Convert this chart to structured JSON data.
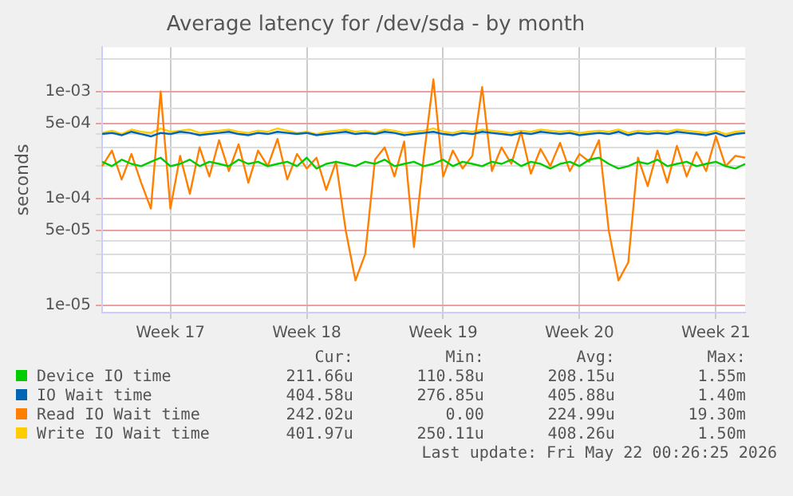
{
  "chart_data": {
    "type": "line",
    "title": "Average latency for /dev/sda - by month",
    "ylabel": "seconds",
    "log": "y",
    "grid": true,
    "legend": "bottom",
    "marker": "none",
    "line_style": "solid",
    "ylim": [
      8.5e-06,
      0.0026
    ],
    "yticks": [
      {
        "value": 1e-05,
        "label": "1e-05"
      },
      {
        "value": 2e-05,
        "label": null
      },
      {
        "value": 3e-05,
        "label": null
      },
      {
        "value": 4e-05,
        "label": null
      },
      {
        "value": 5e-05,
        "label": "5e-05"
      },
      {
        "value": 7e-05,
        "label": null
      },
      {
        "value": 0.0001,
        "label": "1e-04"
      },
      {
        "value": 0.0002,
        "label": null
      },
      {
        "value": 0.0003,
        "label": null
      },
      {
        "value": 0.0004,
        "label": null
      },
      {
        "value": 0.0005,
        "label": "5e-04"
      },
      {
        "value": 0.0007,
        "label": null
      },
      {
        "value": 0.001,
        "label": "1e-03"
      },
      {
        "value": 0.002,
        "label": null
      }
    ],
    "categories": [
      null,
      null,
      null,
      null,
      null,
      null,
      null,
      "Week 17",
      null,
      null,
      null,
      null,
      null,
      null,
      null,
      null,
      null,
      null,
      null,
      null,
      null,
      "Week 18",
      null,
      null,
      null,
      null,
      null,
      null,
      null,
      null,
      null,
      null,
      null,
      null,
      null,
      "Week 19",
      null,
      null,
      null,
      null,
      null,
      null,
      null,
      null,
      null,
      null,
      null,
      null,
      null,
      "Week 20",
      null,
      null,
      null,
      null,
      null,
      null,
      null,
      null,
      null,
      null,
      null,
      null,
      null,
      "Week 21",
      null,
      null,
      null
    ],
    "series": [
      {
        "name": "Device IO time",
        "color": "#00cc00",
        "values": [
          0.00022,
          0.0002,
          0.00023,
          0.00021,
          0.0002,
          0.00022,
          0.00024,
          0.0002,
          0.00021,
          0.00023,
          0.0002,
          0.00022,
          0.00021,
          0.0002,
          0.00023,
          0.00021,
          0.00022,
          0.0002,
          0.00021,
          0.00022,
          0.0002,
          0.00024,
          0.00019,
          0.00021,
          0.00022,
          0.00021,
          0.0002,
          0.00022,
          0.00021,
          0.00023,
          0.0002,
          0.00021,
          0.00022,
          0.0002,
          0.00021,
          0.00023,
          0.0002,
          0.00022,
          0.00021,
          0.0002,
          0.00022,
          0.00021,
          0.00023,
          0.0002,
          0.00022,
          0.00021,
          0.00019,
          0.00021,
          0.00022,
          0.0002,
          0.00023,
          0.00024,
          0.00021,
          0.00019,
          0.0002,
          0.00022,
          0.00021,
          0.00023,
          0.0002,
          0.00021,
          0.00022,
          0.0002,
          0.00021,
          0.00022,
          0.0002,
          0.00019,
          0.00021
        ]
      },
      {
        "name": "IO Wait time",
        "color": "#0066b3",
        "values": [
          0.0004,
          0.00041,
          0.00039,
          0.00042,
          0.0004,
          0.00038,
          0.00041,
          0.0004,
          0.00042,
          0.00041,
          0.00039,
          0.0004,
          0.00041,
          0.00042,
          0.0004,
          0.00039,
          0.00041,
          0.0004,
          0.00042,
          0.00041,
          0.0004,
          0.00041,
          0.00039,
          0.0004,
          0.00041,
          0.00042,
          0.0004,
          0.00041,
          0.0004,
          0.00042,
          0.00041,
          0.00039,
          0.0004,
          0.00041,
          0.00042,
          0.0004,
          0.00039,
          0.00041,
          0.0004,
          0.00042,
          0.00041,
          0.0004,
          0.00039,
          0.00041,
          0.0004,
          0.00042,
          0.00041,
          0.0004,
          0.00041,
          0.00039,
          0.0004,
          0.00041,
          0.0004,
          0.00042,
          0.00039,
          0.00041,
          0.0004,
          0.00041,
          0.0004,
          0.00042,
          0.00041,
          0.0004,
          0.00039,
          0.00041,
          0.00038,
          0.0004,
          0.00041
        ]
      },
      {
        "name": "Read IO Wait time",
        "color": "#ff8000",
        "values": [
          0.0002,
          0.00028,
          0.00015,
          0.00026,
          0.00014,
          8e-05,
          0.001,
          8e-05,
          0.00025,
          0.00011,
          0.0003,
          0.00016,
          0.00035,
          0.00018,
          0.00032,
          0.00014,
          0.00028,
          0.0002,
          0.00036,
          0.00015,
          0.00026,
          0.00019,
          0.00024,
          0.00012,
          0.00022,
          5e-05,
          1.7e-05,
          3e-05,
          0.00023,
          0.0003,
          0.00016,
          0.00034,
          3.5e-05,
          0.00024,
          0.0013,
          0.00016,
          0.00028,
          0.00019,
          0.00025,
          0.0011,
          0.00018,
          0.0003,
          0.00021,
          0.00042,
          0.00017,
          0.00029,
          0.0002,
          0.00033,
          0.00018,
          0.00026,
          0.00022,
          0.00035,
          5e-05,
          1.7e-05,
          2.5e-05,
          0.00024,
          0.00013,
          0.00028,
          0.00014,
          0.00031,
          0.00016,
          0.00027,
          0.00018,
          0.00038,
          0.0002,
          0.00025,
          0.00024
        ]
      },
      {
        "name": "Write IO Wait time",
        "color": "#ffcc00",
        "values": [
          0.00041,
          0.00043,
          0.0004,
          0.00044,
          0.00042,
          0.00041,
          0.00045,
          0.00042,
          0.00043,
          0.00044,
          0.00041,
          0.00042,
          0.00043,
          0.00044,
          0.00042,
          0.00041,
          0.00043,
          0.00042,
          0.00045,
          0.00043,
          0.00041,
          0.00042,
          0.0004,
          0.00042,
          0.00043,
          0.00044,
          0.00042,
          0.00043,
          0.00041,
          0.00044,
          0.00043,
          0.00041,
          0.00042,
          0.00043,
          0.00045,
          0.00042,
          0.00041,
          0.00043,
          0.00042,
          0.00044,
          0.00043,
          0.00042,
          0.00041,
          0.00043,
          0.00042,
          0.00044,
          0.00043,
          0.00042,
          0.00043,
          0.00041,
          0.00042,
          0.00043,
          0.00042,
          0.00044,
          0.00041,
          0.00043,
          0.00042,
          0.00043,
          0.00042,
          0.00044,
          0.00043,
          0.00042,
          0.00041,
          0.00043,
          0.0004,
          0.00042,
          0.00043
        ]
      }
    ],
    "annotations": [
      "Cur:",
      "Min:",
      "Avg:",
      "Max:",
      "211.66u",
      "110.58u",
      "208.15u",
      "1.55m",
      "404.58u",
      "276.85u",
      "405.88u",
      "1.40m",
      "242.02u",
      "0.00",
      "224.99u",
      "19.30m",
      "401.97u",
      "250.11u",
      "408.26u",
      "1.50m",
      "Last update: Fri May 22 00:26:25 2026"
    ]
  }
}
